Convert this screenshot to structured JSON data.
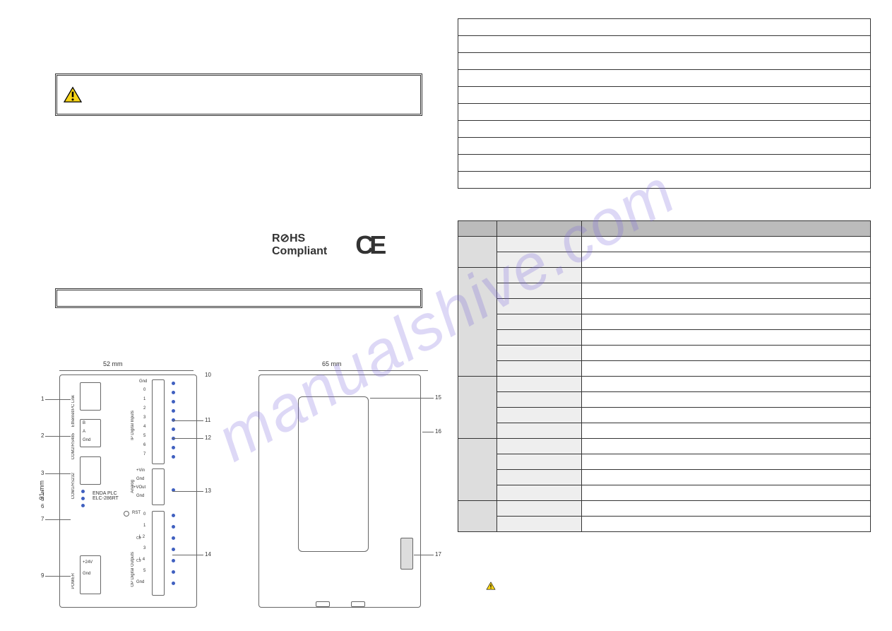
{
  "watermark": "manualshive.com",
  "warning_box_text": "",
  "rohs_line1": "R⊘HS",
  "rohs_line2": "Compliant",
  "ce_mark": "CE",
  "dimensions": {
    "width_front": "52 mm",
    "width_side": "65 mm",
    "height": "91 mm"
  },
  "front_labels": {
    "ethernet": "Ethernet/PC Link",
    "rs485": "COM2/RS485",
    "rs485_b": "B",
    "rs485_a": "A",
    "rs485_gnd": "Gnd",
    "rs232": "COM1/RS232",
    "brand": "ENDA PLC",
    "model": "ELC-286RT",
    "power": "POWER",
    "p24v": "+24V",
    "pgnd": "Gnd",
    "inputs_label": "IP Digital Inputs",
    "in_gnd": "Gnd",
    "in_0": "0",
    "in_1": "1",
    "in_2": "2",
    "in_3": "3",
    "in_4": "4",
    "in_5": "5",
    "in_6": "6",
    "in_7": "7",
    "analog": "Analog",
    "a_vin": "+Vin",
    "a_gnd1": "Gnd",
    "a_vout": "+VOut",
    "a_gnd2": "Gnd",
    "outputs_label": "OP Digital Outputs",
    "rst": "RST",
    "o_0": "0",
    "o_1": "1",
    "o_l2": "L 2",
    "o_3": "3",
    "o_l4": "L 4",
    "o_5": "5",
    "o_gnd": "Gnd",
    "o_c0": "C0",
    "o_c1": "C1"
  },
  "callouts": {
    "c1": "1",
    "c2": "2",
    "c3": "3",
    "c4": "4",
    "c5": "5",
    "c6": "6",
    "c7": "7",
    "c9": "9",
    "c10": "10",
    "c11": "11",
    "c12": "12",
    "c13": "13",
    "c14": "14",
    "c15": "15",
    "c16": "16",
    "c17": "17"
  },
  "features_rows": [
    "",
    "",
    "",
    "",
    "",
    "",
    "",
    "",
    "",
    ""
  ],
  "parts_header": {
    "no": "",
    "name": "",
    "desc": ""
  },
  "parts_groups": [
    {
      "group": "",
      "rows": [
        {
          "no": "",
          "name": "",
          "desc": ""
        },
        {
          "no": "",
          "name": "",
          "desc": ""
        }
      ]
    },
    {
      "group": "",
      "rows": [
        {
          "no": "",
          "name": "",
          "desc": ""
        },
        {
          "no": "",
          "name": "",
          "desc": ""
        },
        {
          "no": "",
          "name": "",
          "desc": ""
        },
        {
          "no": "",
          "name": "",
          "desc": ""
        },
        {
          "no": "",
          "name": "",
          "desc": ""
        },
        {
          "no": "",
          "name": "",
          "desc": ""
        },
        {
          "no": "",
          "name": "",
          "desc": ""
        }
      ]
    },
    {
      "group": "",
      "rows": [
        {
          "no": "",
          "name": "",
          "desc": ""
        },
        {
          "no": "",
          "name": "",
          "desc": ""
        },
        {
          "no": "",
          "name": "",
          "desc": ""
        },
        {
          "no": "",
          "name": "",
          "desc": ""
        }
      ]
    },
    {
      "group": "",
      "rows": [
        {
          "no": "",
          "name": "",
          "desc": ""
        },
        {
          "no": "",
          "name": "",
          "desc": ""
        },
        {
          "no": "",
          "name": "",
          "desc": ""
        },
        {
          "no": "",
          "name": "",
          "desc": ""
        }
      ]
    },
    {
      "group": "",
      "rows": [
        {
          "no": "",
          "name": "",
          "desc": ""
        },
        {
          "no": "",
          "name": "",
          "desc": ""
        }
      ]
    }
  ],
  "colors": {
    "warning_fill": "#f7d417",
    "warning_stroke": "#000",
    "led": "#4060c0",
    "border": "#333",
    "grp_bg": "#ddd",
    "name_bg": "#eee",
    "header_bg": "#bbb"
  }
}
